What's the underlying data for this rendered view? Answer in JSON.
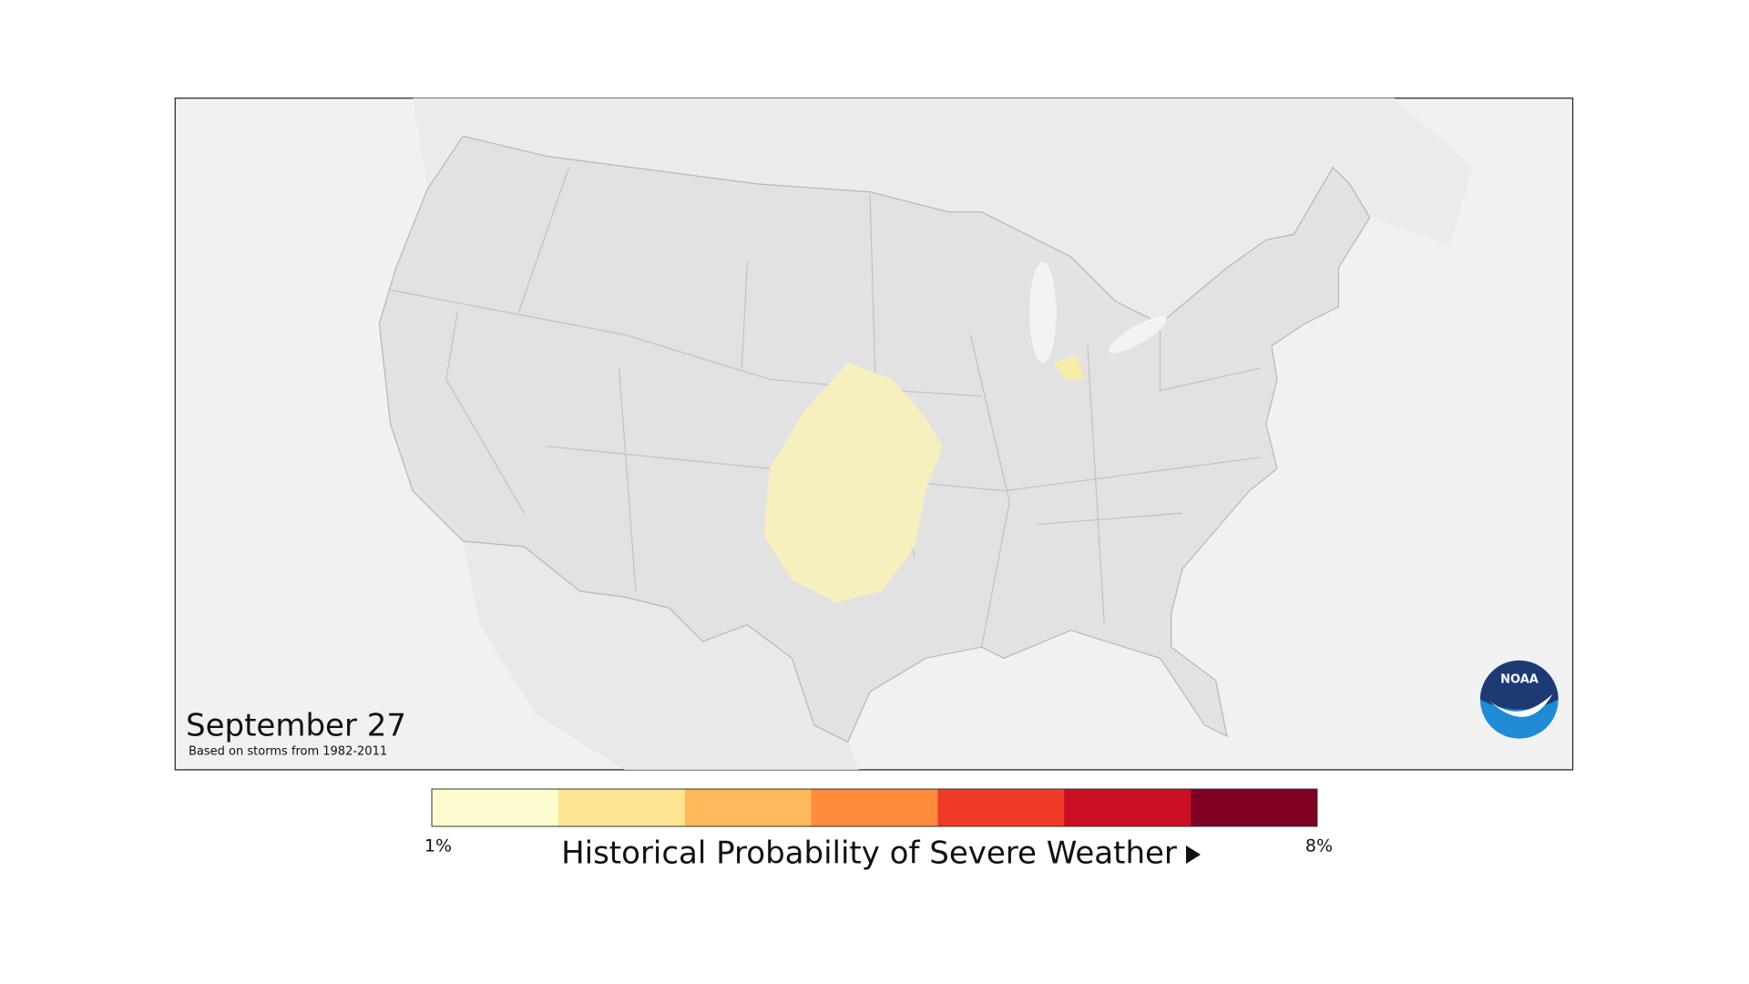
{
  "map": {
    "title": "September 27",
    "subtitle": "Based on storms from 1982-2011",
    "logo_text": "NOAA"
  },
  "legend": {
    "title": "Historical Probability of Severe Weather",
    "min_label": "1%",
    "max_label": "8%",
    "colors": [
      "#fffccf",
      "#fee591",
      "#feb95a",
      "#fd8b3b",
      "#f03b28",
      "#ca0f25",
      "#7f0022"
    ]
  }
}
